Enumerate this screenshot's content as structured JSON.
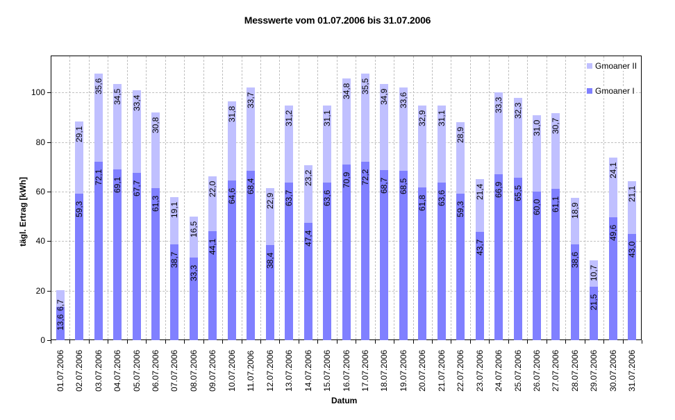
{
  "chart_data": {
    "type": "bar",
    "stacked": true,
    "title": "Messwerte vom 01.07.2006 bis 31.07.2006",
    "xlabel": "Datum",
    "ylabel": "tägl. Ertrag [kWh]",
    "ylim": [
      0,
      115
    ],
    "yticks": [
      0,
      20,
      40,
      60,
      80,
      100
    ],
    "grid": true,
    "legend_position": "top-right",
    "categories": [
      "01.07.2006",
      "02.07.2006",
      "03.07.2006",
      "04.07.2006",
      "05.07.2006",
      "06.07.2006",
      "07.07.2006",
      "08.07.2006",
      "09.07.2006",
      "10.07.2006",
      "11.07.2006",
      "12.07.2006",
      "13.07.2006",
      "14.07.2006",
      "15.07.2006",
      "16.07.2006",
      "17.07.2006",
      "18.07.2006",
      "19.07.2006",
      "20.07.2006",
      "21.07.2006",
      "22.07.2006",
      "23.07.2006",
      "24.07.2006",
      "25.07.2006",
      "26.07.2006",
      "27.07.2006",
      "28.07.2006",
      "29.07.2006",
      "30.07.2006",
      "31.07.2006"
    ],
    "series": [
      {
        "name": "Gmoaner I",
        "color": "#8080ff",
        "values": [
          13.6,
          59.3,
          72.1,
          69.1,
          67.7,
          61.3,
          38.7,
          33.3,
          44.1,
          64.6,
          68.4,
          38.4,
          63.7,
          47.4,
          63.6,
          70.9,
          72.2,
          68.7,
          68.5,
          61.8,
          63.6,
          59.3,
          43.7,
          66.9,
          65.5,
          60.0,
          61.1,
          38.6,
          21.5,
          49.6,
          43.0
        ],
        "labels": [
          "13,6",
          "59,3",
          "72,1",
          "69,1",
          "67,7",
          "61,3",
          "38,7",
          "33,3",
          "44,1",
          "64,6",
          "68,4",
          "38,4",
          "63,7",
          "47,4",
          "63,6",
          "70,9",
          "72,2",
          "68,7",
          "68,5",
          "61,8",
          "63,6",
          "59,3",
          "43,7",
          "66,9",
          "65,5",
          "60,0",
          "61,1",
          "38,6",
          "21,5",
          "49,6",
          "43,0"
        ]
      },
      {
        "name": "Gmoaner II",
        "color": "#c0c0ff",
        "values": [
          6.7,
          29.1,
          35.6,
          34.5,
          33.4,
          30.8,
          19.1,
          16.5,
          22.0,
          31.8,
          33.7,
          22.9,
          31.2,
          23.2,
          31.1,
          34.8,
          35.5,
          34.9,
          33.6,
          32.9,
          31.1,
          28.9,
          21.4,
          33.3,
          32.3,
          31.0,
          30.7,
          18.9,
          10.7,
          24.1,
          21.1
        ],
        "labels": [
          "6,7",
          "29,1",
          "35,6",
          "34,5",
          "33,4",
          "30,8",
          "19,1",
          "16,5",
          "22,0",
          "31,8",
          "33,7",
          "22,9",
          "31,2",
          "23,2",
          "31,1",
          "34,8",
          "35,5",
          "34,9",
          "33,6",
          "32,9",
          "31,1",
          "28,9",
          "21,4",
          "33,3",
          "32,3",
          "31,0",
          "30,7",
          "18,9",
          "10,7",
          "24,1",
          "21,1"
        ]
      }
    ]
  },
  "legend": {
    "items": [
      {
        "label": "Gmoaner II",
        "color": "#c0c0ff"
      },
      {
        "label": "Gmoaner I",
        "color": "#8080ff"
      }
    ]
  }
}
